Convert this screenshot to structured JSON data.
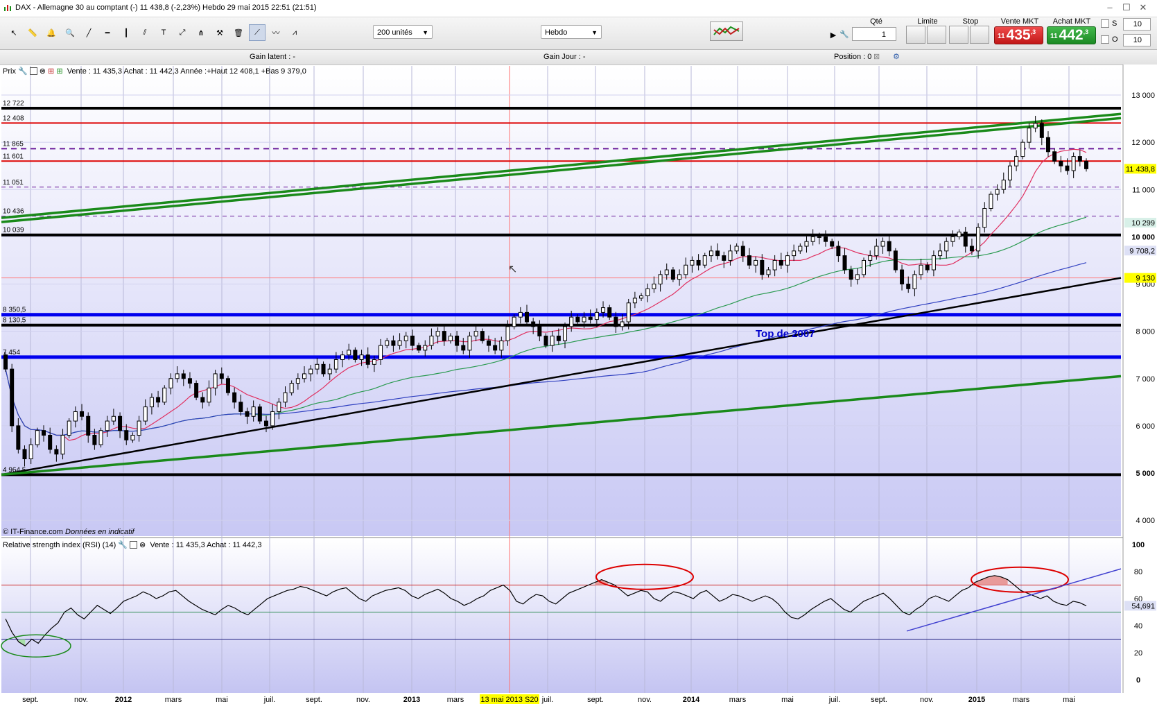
{
  "window": {
    "title": "DAX - Allemagne 30 au comptant (-)    11 438,8 (-2,23%)    Hebdo  29 mai 2015 22:51 (21:51)"
  },
  "toolbar": {
    "quantity_select": "200 unités",
    "period_select": "Hebdo",
    "qty_label": "Qté",
    "qty_value": "1",
    "limit_label": "Limite",
    "stop_label": "Stop",
    "sell_label": "Vente MKT",
    "sell_prefix": "11",
    "sell_price": "435",
    "sell_decimal": ",3",
    "buy_label": "Achat MKT",
    "buy_prefix": "11",
    "buy_price": "442",
    "buy_decimal": ",3",
    "s_label": "S",
    "o_label": "O",
    "s_value": "10",
    "o_value": "10"
  },
  "gainbar": {
    "gain_latent": "Gain latent : -",
    "gain_jour": "Gain Jour : -",
    "position": "Position : 0"
  },
  "price_panel": {
    "legend_label": "Prix",
    "legend_text": "Vente : 11 435,3 Achat : 11 442,3  Année :+Haut 12 408,1 +Bas 9 379,0",
    "copyright": "© IT-Finance.com",
    "copyright_note": "Données en indicatif",
    "annotation": "Top de 2007"
  },
  "rsi_panel": {
    "legend_label": "Relative strength index (RSI) (14)",
    "legend_text": "Vente : 11 435,3 Achat : 11 442,3",
    "current_value": "54,691"
  },
  "highlight_date": "13 mai 2013 S20",
  "chart_data": [
    {
      "type": "candlestick",
      "name": "DAX weekly",
      "ylim": [
        4000,
        13000
      ],
      "yticks": [
        "13 000",
        "12 000",
        "11 000",
        "10 000",
        "9 000",
        "8 000",
        "7 000",
        "6 000",
        "5 000",
        "4 000"
      ],
      "xticks": [
        "sept.",
        "nov.",
        "2012",
        "mars",
        "mai",
        "juil.",
        "sept.",
        "nov.",
        "2013",
        "mars",
        "juil.",
        "sept.",
        "nov.",
        "2014",
        "mars",
        "mai",
        "juil.",
        "sept.",
        "nov.",
        "2015",
        "mars",
        "mai"
      ],
      "horizontal_levels": [
        {
          "label": "12 722",
          "value": 12722,
          "color": "#000000",
          "style": "solid-thick"
        },
        {
          "label": "12 408",
          "value": 12408,
          "color": "#dd0000",
          "style": "solid"
        },
        {
          "label": "11 865",
          "value": 11865,
          "color": "#6a1b9a",
          "style": "dashed"
        },
        {
          "label": "11 601",
          "value": 11601,
          "color": "#dd0000",
          "style": "solid"
        },
        {
          "label": "11 051",
          "value": 11051,
          "color": "#6a1b9a",
          "style": "dashed-thin"
        },
        {
          "label": "10 436",
          "value": 10436,
          "color": "#6a1b9a",
          "style": "dashed-thin"
        },
        {
          "label": "10 039",
          "value": 10039,
          "color": "#000000",
          "style": "solid-thick"
        },
        {
          "label": "8 350,5",
          "value": 8350.5,
          "color": "#0000ee",
          "style": "solid-thick"
        },
        {
          "label": "8 130,5",
          "value": 8130.5,
          "color": "#000000",
          "style": "solid-thick"
        },
        {
          "label": "7 454",
          "value": 7454,
          "color": "#0000ee",
          "style": "solid-thick"
        },
        {
          "label": "4 964,5",
          "value": 4964.5,
          "color": "#000000",
          "style": "solid-thick"
        }
      ],
      "right_labels": [
        {
          "text": "11 438,8",
          "value": 11438.8,
          "bg": "#ffff00"
        },
        {
          "text": "10 299",
          "value": 10299,
          "bg": "#d8f0e8"
        },
        {
          "text": "9 708,2",
          "value": 9708.2,
          "bg": "#dde0f5"
        },
        {
          "text": "9 130",
          "value": 9130,
          "bg": "#ffff00"
        }
      ],
      "last_close": 11438.8,
      "year_high": 12408.1,
      "year_low": 9379.0,
      "trendline_anchors": [
        {
          "line": "black-support",
          "from": 4964.5,
          "to": 9130
        },
        {
          "line": "green-lower",
          "from": 4964.5,
          "to": 7050
        },
        {
          "line": "green-upper-channel",
          "from": 10400,
          "to": 12600
        }
      ],
      "weekly_closes": [
        7200,
        6000,
        5500,
        5300,
        5600,
        5900,
        5800,
        5500,
        5400,
        5800,
        6100,
        6300,
        6200,
        5800,
        5600,
        5900,
        6100,
        6200,
        5900,
        5700,
        5800,
        6100,
        6400,
        6600,
        6500,
        6800,
        7000,
        7100,
        7000,
        6900,
        6600,
        6500,
        6800,
        7100,
        7000,
        6700,
        6500,
        6300,
        6200,
        6400,
        6100,
        6000,
        6300,
        6500,
        6700,
        6900,
        7000,
        7100,
        7200,
        7300,
        7100,
        7200,
        7400,
        7500,
        7600,
        7400,
        7500,
        7300,
        7400,
        7700,
        7800,
        7700,
        7800,
        7900,
        7700,
        7600,
        7700,
        7900,
        8000,
        7800,
        7900,
        7700,
        7600,
        7900,
        8000,
        7800,
        7700,
        7600,
        7800,
        8100,
        8300,
        8400,
        8200,
        8100,
        7900,
        7700,
        7900,
        7800,
        8100,
        8300,
        8200,
        8300,
        8250,
        8400,
        8500,
        8300,
        8100,
        8200,
        8600,
        8700,
        8750,
        8900,
        9000,
        9200,
        9300,
        9100,
        9200,
        9400,
        9500,
        9400,
        9600,
        9700,
        9600,
        9500,
        9700,
        9800,
        9600,
        9400,
        9500,
        9200,
        9300,
        9500,
        9400,
        9600,
        9700,
        9800,
        9900,
        10000,
        10000,
        9900,
        9800,
        9600,
        9300,
        9100,
        9200,
        9500,
        9600,
        9800,
        9900,
        9700,
        9300,
        9000,
        8900,
        9200,
        9400,
        9300,
        9600,
        9700,
        9900,
        10000,
        10100,
        9800,
        9700,
        10200,
        10600,
        10900,
        11000,
        11200,
        11500,
        11700,
        12000,
        12300,
        12400,
        12100,
        11800,
        11600,
        11500,
        11400,
        11700,
        11600,
        11439
      ]
    },
    {
      "type": "line",
      "name": "Relative strength index (RSI) (14)",
      "ylim": [
        0,
        100
      ],
      "yticks": [
        "100",
        "80",
        "60",
        "40",
        "20",
        "0"
      ],
      "levels": [
        70,
        50,
        30
      ],
      "last_value": 54.691,
      "values": [
        45,
        35,
        28,
        25,
        30,
        27,
        33,
        38,
        42,
        50,
        53,
        48,
        45,
        50,
        55,
        52,
        49,
        53,
        58,
        60,
        62,
        65,
        63,
        60,
        62,
        65,
        66,
        62,
        58,
        55,
        52,
        50,
        48,
        52,
        55,
        53,
        50,
        48,
        52,
        56,
        60,
        62,
        64,
        66,
        67,
        69,
        68,
        66,
        64,
        62,
        65,
        67,
        68,
        64,
        60,
        58,
        62,
        64,
        66,
        67,
        68,
        66,
        62,
        60,
        63,
        65,
        67,
        64,
        60,
        58,
        55,
        57,
        60,
        62,
        66,
        68,
        70,
        66,
        58,
        56,
        60,
        63,
        62,
        58,
        56,
        60,
        64,
        66,
        68,
        70,
        72,
        74,
        72,
        70,
        66,
        62,
        64,
        66,
        65,
        60,
        58,
        62,
        65,
        64,
        62,
        60,
        64,
        66,
        62,
        58,
        60,
        63,
        62,
        60,
        58,
        60,
        62,
        60,
        56,
        50,
        46,
        45,
        48,
        52,
        55,
        58,
        60,
        56,
        52,
        50,
        54,
        58,
        60,
        62,
        64,
        60,
        55,
        50,
        48,
        52,
        55,
        60,
        62,
        60,
        58,
        62,
        66,
        68,
        72,
        74,
        76,
        77,
        76,
        74,
        70,
        66,
        64,
        62,
        60,
        62,
        58,
        56,
        55,
        58,
        57,
        54.691
      ]
    }
  ]
}
